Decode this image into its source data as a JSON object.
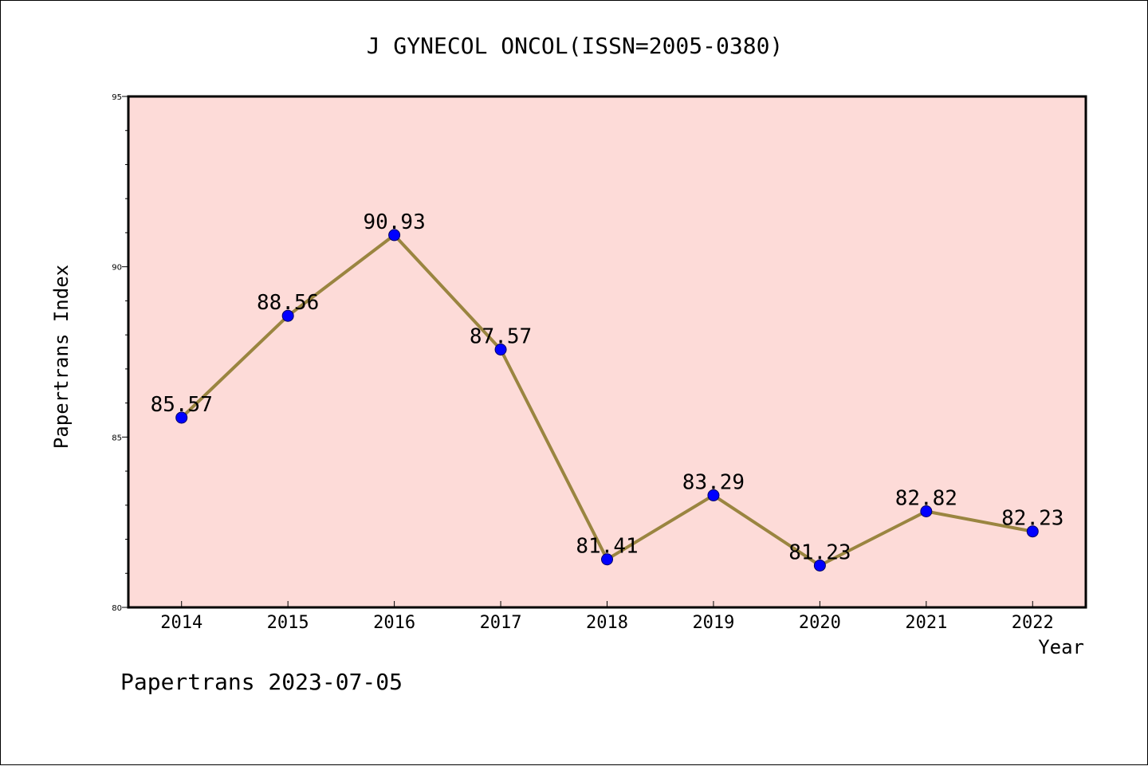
{
  "chart_data": {
    "type": "line",
    "title": "J GYNECOL ONCOL(ISSN=2005-0380)",
    "xlabel": "Year",
    "ylabel": "Papertrans Index",
    "categories": [
      "2014",
      "2015",
      "2016",
      "2017",
      "2018",
      "2019",
      "2020",
      "2021",
      "2022"
    ],
    "series": [
      {
        "values": [
          85.57,
          88.56,
          90.93,
          87.57,
          81.41,
          83.29,
          81.23,
          82.82,
          82.23
        ],
        "labels": [
          "85.57",
          "88.56",
          "90.93",
          "87.57",
          "81.41",
          "83.29",
          "81.23",
          "82.82",
          "82.23"
        ]
      }
    ],
    "ylim": [
      80,
      95
    ],
    "yticks": [
      "80",
      "85",
      "90",
      "95"
    ],
    "grid": false,
    "legend": "none",
    "colors": {
      "plot_background": "#fddbd8",
      "line": "#9a8540",
      "marker": "#0000ff",
      "axis": "#000000"
    }
  },
  "footer": {
    "text": "Papertrans 2023-07-05"
  }
}
